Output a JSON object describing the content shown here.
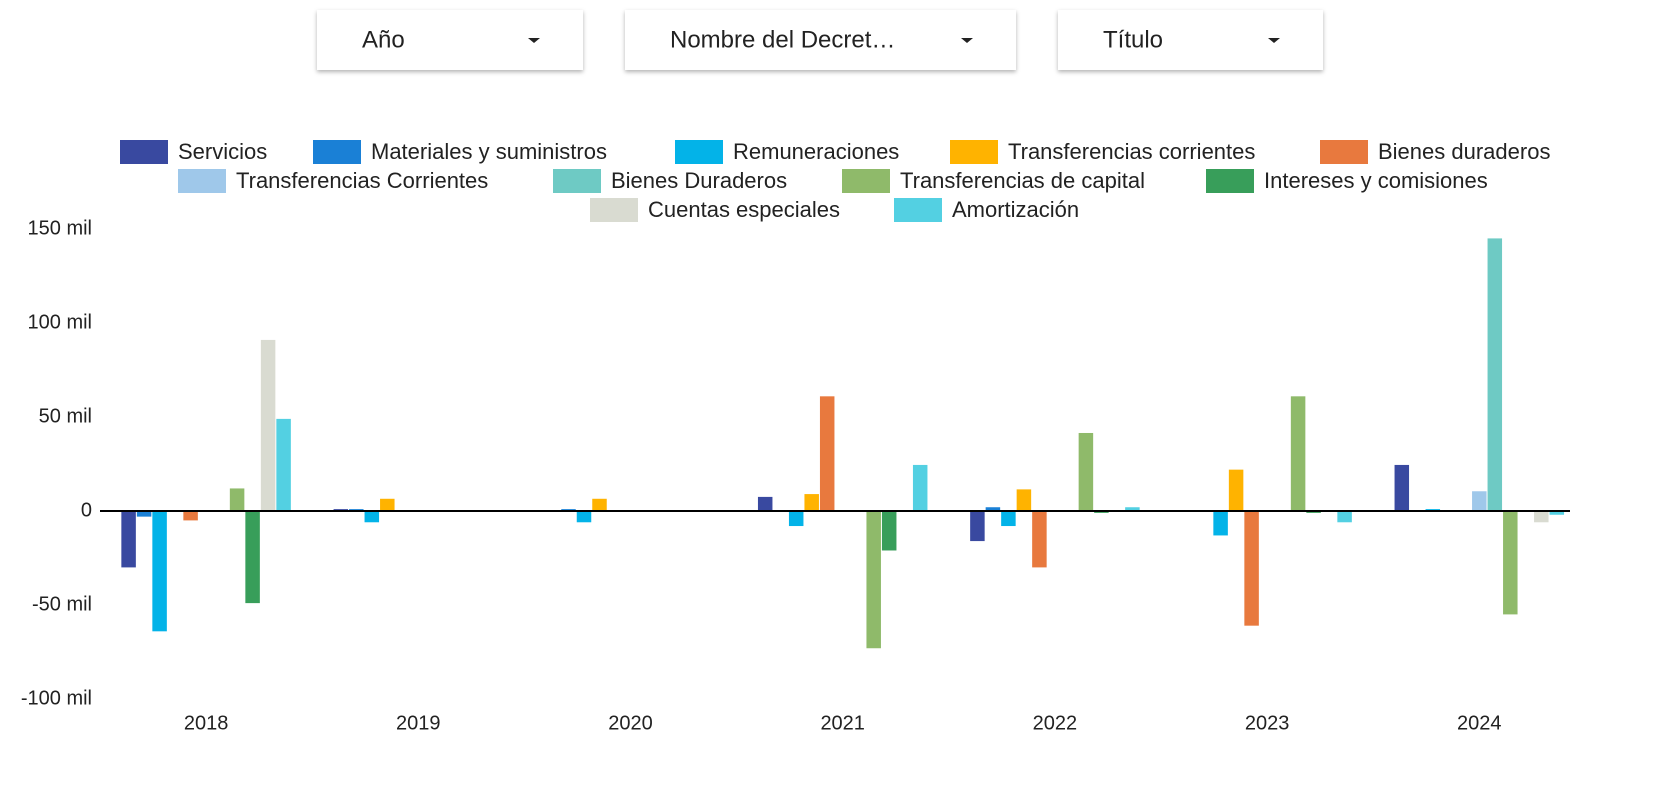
{
  "controls": [
    "Año",
    "Nombre del Decret…",
    "Título"
  ],
  "chart_data": {
    "type": "bar",
    "categories": [
      "2018",
      "2019",
      "2020",
      "2021",
      "2022",
      "2023",
      "2024"
    ],
    "ylim": [
      -100000,
      150000
    ],
    "yticks": [
      {
        "value": 150000,
        "label": "150 mil"
      },
      {
        "value": 100000,
        "label": "100 mil"
      },
      {
        "value": 50000,
        "label": "50 mil"
      },
      {
        "value": 0,
        "label": "0"
      },
      {
        "value": -50000,
        "label": "-50 mil"
      },
      {
        "value": -100000,
        "label": "-100 mil"
      }
    ],
    "grid": false,
    "legend": "top",
    "series": [
      {
        "name": "Servicios",
        "color": "#3949a0",
        "values": [
          -30000,
          1000,
          0,
          7500,
          -16000,
          0,
          24500
        ]
      },
      {
        "name": "Materiales y suministros",
        "color": "#1a80d6",
        "values": [
          -3000,
          1000,
          1000,
          0,
          2000,
          0,
          0
        ]
      },
      {
        "name": "Remuneraciones",
        "color": "#03b3e8",
        "values": [
          -64000,
          -6000,
          -6000,
          -8000,
          -8000,
          -13000,
          1000
        ]
      },
      {
        "name": "Transferencias corrientes",
        "color": "#ffb300",
        "values": [
          0,
          6500,
          6500,
          9000,
          11500,
          22000,
          0
        ]
      },
      {
        "name": "Bienes duraderos",
        "color": "#e8793e",
        "values": [
          -5000,
          0,
          0,
          61000,
          -30000,
          -61000,
          0
        ]
      },
      {
        "name": "Transferencias Corrientes",
        "color": "#9fc8ea",
        "values": [
          0,
          0,
          0,
          0,
          0,
          0,
          10500
        ]
      },
      {
        "name": "Bienes Duraderos",
        "color": "#6ecac4",
        "values": [
          0,
          0,
          0,
          0,
          0,
          0,
          145000
        ]
      },
      {
        "name": "Transferencias de capital",
        "color": "#8fba6a",
        "values": [
          12000,
          0,
          0,
          -73000,
          41500,
          61000,
          -55000
        ]
      },
      {
        "name": "Intereses y comisiones",
        "color": "#389e5a",
        "values": [
          -49000,
          0,
          0,
          -21000,
          -1000,
          -1000,
          0
        ]
      },
      {
        "name": "Cuentas especiales",
        "color": "#d9dbd1",
        "values": [
          91000,
          0,
          0,
          0,
          0,
          0,
          -6000
        ]
      },
      {
        "name": "Amortización",
        "color": "#53d0e2",
        "values": [
          49000,
          0,
          0,
          24500,
          2000,
          -6000,
          -2000
        ]
      }
    ]
  }
}
